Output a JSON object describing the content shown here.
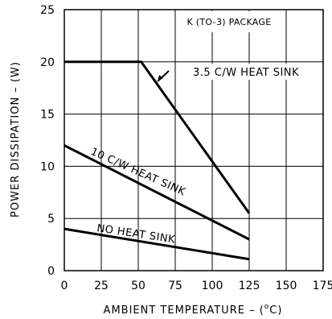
{
  "chart_data": {
    "type": "line",
    "title": "",
    "xlabel_main": "AMBIENT TEMPERATURE – (",
    "xlabel_sup": "o",
    "xlabel_end": "C)",
    "ylabel": "POWER DISSIPATION – (W)",
    "xlim": [
      0,
      175
    ],
    "ylim": [
      0,
      25
    ],
    "x_ticks": [
      "0",
      "25",
      "50",
      "75",
      "100",
      "125",
      "150",
      "175"
    ],
    "y_ticks": [
      "0",
      "5",
      "10",
      "15",
      "20",
      "25"
    ],
    "grid": true,
    "annotation": "K (TO-3) PACKAGE",
    "series": [
      {
        "name": "3.5 C/W HEAT SINK",
        "x": [
          0,
          52,
          125
        ],
        "y": [
          20,
          20,
          5.5
        ]
      },
      {
        "name": "10 C/W HEAT SINK",
        "x": [
          0,
          125
        ],
        "y": [
          12,
          3
        ]
      },
      {
        "name": "NO HEAT SINK",
        "x": [
          0,
          125
        ],
        "y": [
          4,
          1.1
        ]
      }
    ]
  }
}
